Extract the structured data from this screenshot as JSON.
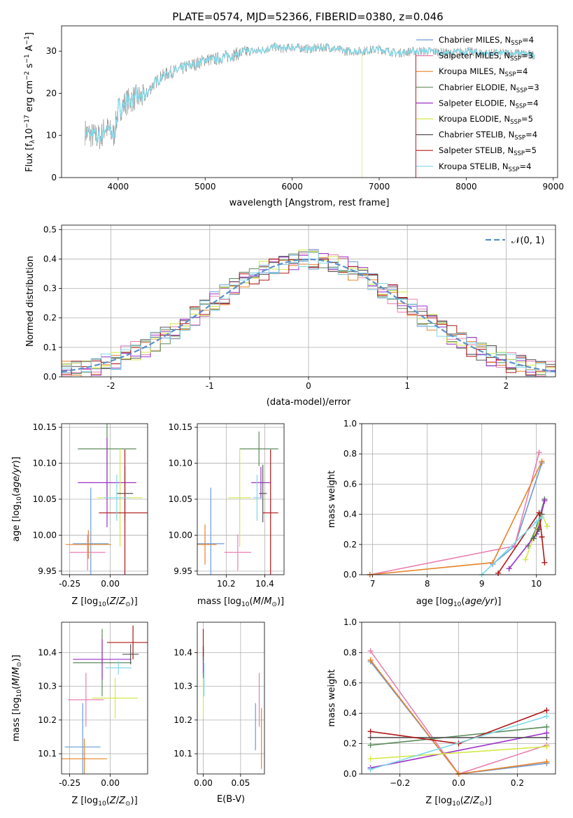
{
  "figure": {
    "title": "PLATE=0574, MJD=52366, FIBERID=0380, z=0.046"
  },
  "colors": {
    "chabrier_miles": "#6a9bd8",
    "salpeter_miles": "#e87fb0",
    "kroupa_miles": "#e8822a",
    "chabrier_elodie": "#5a8a5a",
    "salpeter_elodie": "#9b30c8",
    "kroupa_elodie": "#d4e84a",
    "chabrier_stelib": "#555555",
    "salpeter_stelib": "#b01818",
    "kroupa_stelib": "#7fd8e8",
    "data": "#808080",
    "gaussian": "#5b8fc8",
    "grid": "#b0b0b0"
  },
  "chart_data": [
    {
      "id": "spectrum",
      "type": "line",
      "xlabel": "wavelength [Angstrom, rest frame]",
      "ylabel": "Flux [f_λ10^-17 erg cm^-2 s^-1 A^-1]",
      "xlim": [
        3350,
        9050
      ],
      "ylim": [
        0,
        36
      ],
      "xticks": [
        4000,
        5000,
        6000,
        7000,
        8000,
        9000
      ],
      "yticks": [
        0,
        10,
        20,
        30
      ],
      "grid": false,
      "legend_position": "right",
      "legend": [
        {
          "text": "Chabrier MILES, N",
          "sub": "SSP",
          "tail": "=4",
          "color_key": "chabrier_miles"
        },
        {
          "text": "Salpeter MILES, N",
          "sub": "SSP",
          "tail": "=3",
          "color_key": "salpeter_miles"
        },
        {
          "text": "Kroupa MILES, N",
          "sub": "SSP",
          "tail": "=4",
          "color_key": "kroupa_miles"
        },
        {
          "text": "Chabrier ELODIE, N",
          "sub": "SSP",
          "tail": "=3",
          "color_key": "chabrier_elodie"
        },
        {
          "text": "Salpeter ELODIE, N",
          "sub": "SSP",
          "tail": "=4",
          "color_key": "salpeter_elodie"
        },
        {
          "text": "Kroupa ELODIE, N",
          "sub": "SSP",
          "tail": "=5",
          "color_key": "kroupa_elodie"
        },
        {
          "text": "Chabrier STELIB, N",
          "sub": "SSP",
          "tail": "=4",
          "color_key": "chabrier_stelib"
        },
        {
          "text": "Salpeter STELIB, N",
          "sub": "SSP",
          "tail": "=5",
          "color_key": "salpeter_stelib"
        },
        {
          "text": "Kroupa STELIB, N",
          "sub": "SSP",
          "tail": "=4",
          "color_key": "kroupa_stelib"
        }
      ],
      "continuum": [
        [
          3600,
          11
        ],
        [
          3700,
          10
        ],
        [
          3800,
          9.5
        ],
        [
          3850,
          12
        ],
        [
          3950,
          10
        ],
        [
          4000,
          16
        ],
        [
          4100,
          18
        ],
        [
          4200,
          19
        ],
        [
          4300,
          19
        ],
        [
          4400,
          22
        ],
        [
          4500,
          24
        ],
        [
          4600,
          25
        ],
        [
          4700,
          25.5
        ],
        [
          4800,
          26.5
        ],
        [
          4900,
          27
        ],
        [
          5000,
          28
        ],
        [
          5100,
          28
        ],
        [
          5200,
          28.5
        ],
        [
          5300,
          29
        ],
        [
          5400,
          29.5
        ],
        [
          5500,
          30
        ],
        [
          5600,
          30
        ],
        [
          5700,
          30.5
        ],
        [
          5800,
          31
        ],
        [
          5900,
          30.5
        ],
        [
          6000,
          31
        ],
        [
          6200,
          30.5
        ],
        [
          6400,
          31
        ],
        [
          6600,
          30
        ],
        [
          6800,
          30
        ],
        [
          7000,
          30.5
        ],
        [
          7200,
          29.5
        ],
        [
          7400,
          30
        ],
        [
          7600,
          30
        ],
        [
          7800,
          29.5
        ],
        [
          8000,
          30
        ],
        [
          8200,
          29.5
        ],
        [
          8400,
          29.5
        ],
        [
          8600,
          29.5
        ],
        [
          8800,
          29
        ]
      ],
      "model_end": {
        "kroupa_elodie": 6800,
        "salpeter_stelib": 7420,
        "salpeter_miles": 7420,
        "kroupa_miles": 7420,
        "chabrier_elodie": 7420,
        "salpeter_elodie": 7420
      }
    },
    {
      "id": "residuals",
      "type": "histogram",
      "xlabel": "(data-model)/error",
      "ylabel": "Normed distribution",
      "xlim": [
        -2.5,
        2.5
      ],
      "ylim": [
        0,
        0.515
      ],
      "xticks": [
        -2,
        -1,
        0,
        1,
        2
      ],
      "yticks": [
        0.0,
        0.1,
        0.2,
        0.3,
        0.4,
        0.5
      ],
      "grid": true,
      "legend_position": "top-right",
      "legend": [
        {
          "text": "𝒩(0, 1)",
          "color_key": "gaussian"
        }
      ],
      "bin_width": 0.1
    },
    {
      "id": "age_vs_Z",
      "type": "scatter",
      "xlabel": "Z [log10(Z/Z⊙)]",
      "ylabel": "age  [log10(age/yr)]",
      "xlim": [
        -0.3,
        0.23
      ],
      "ylim": [
        9.945,
        10.155
      ],
      "xticks": [
        -0.25,
        0.0
      ],
      "yticks": [
        9.95,
        10.0,
        10.05,
        10.1,
        10.15
      ],
      "points": [
        {
          "key": "chabrier_miles",
          "x": -0.12,
          "xerr": 0.11,
          "y": 9.988,
          "yerr": 0.078
        },
        {
          "key": "salpeter_miles",
          "x": -0.14,
          "xerr": 0.11,
          "y": 9.976,
          "yerr": 0.025
        },
        {
          "key": "kroupa_miles",
          "x": -0.135,
          "xerr": 0.14,
          "y": 9.987,
          "yerr": 0.02
        },
        {
          "key": "chabrier_elodie",
          "x": -0.02,
          "xerr": 0.18,
          "y": 10.12,
          "yerr": 0.07
        },
        {
          "key": "salpeter_elodie",
          "x": -0.02,
          "xerr": 0.18,
          "y": 10.073,
          "yerr": 0.062
        },
        {
          "key": "kroupa_elodie",
          "x": 0.06,
          "xerr": 0.14,
          "y": 10.052,
          "yerr": 0.068
        },
        {
          "key": "chabrier_stelib",
          "x": 0.09,
          "xerr": 0.05,
          "y": 10.058,
          "yerr": 0.038
        },
        {
          "key": "salpeter_stelib",
          "x": 0.09,
          "xerr": 0.16,
          "y": 10.031,
          "yerr": 0.088
        },
        {
          "key": "kroupa_stelib",
          "x": 0.04,
          "xerr": 0.08,
          "y": 10.052,
          "yerr": 0.032
        }
      ]
    },
    {
      "id": "age_vs_mass",
      "type": "scatter",
      "xlabel": "mass [log10(M/M⊙)]",
      "ylabel": "",
      "xlim": [
        10.05,
        10.5
      ],
      "ylim": [
        9.945,
        10.155
      ],
      "xticks": [
        10.2,
        10.4
      ],
      "yticks": [
        9.95,
        10.0,
        10.05,
        10.1,
        10.15
      ],
      "points": [
        {
          "key": "chabrier_miles",
          "x": 10.12,
          "xerr": 0.07,
          "y": 9.988,
          "yerr": 0.078
        },
        {
          "key": "salpeter_miles",
          "x": 10.26,
          "xerr": 0.07,
          "y": 9.976,
          "yerr": 0.025
        },
        {
          "key": "kroupa_miles",
          "x": 10.09,
          "xerr": 0.06,
          "y": 9.987,
          "yerr": 0.028
        },
        {
          "key": "chabrier_elodie",
          "x": 10.37,
          "xerr": 0.1,
          "y": 10.12,
          "yerr": 0.024
        },
        {
          "key": "salpeter_elodie",
          "x": 10.38,
          "xerr": 0.05,
          "y": 10.073,
          "yerr": 0.022
        },
        {
          "key": "kroupa_elodie",
          "x": 10.27,
          "xerr": 0.06,
          "y": 10.052,
          "yerr": 0.068
        },
        {
          "key": "chabrier_stelib",
          "x": 10.39,
          "xerr": 0.02,
          "y": 10.058,
          "yerr": 0.04
        },
        {
          "key": "salpeter_stelib",
          "x": 10.43,
          "xerr": 0.04,
          "y": 10.031,
          "yerr": 0.088
        },
        {
          "key": "kroupa_stelib",
          "x": 10.36,
          "xerr": 0.02,
          "y": 10.052,
          "yerr": 0.032
        }
      ]
    },
    {
      "id": "weight_vs_age",
      "type": "line",
      "xlabel": "age  [log10(age/yr)]",
      "ylabel": "mass weight",
      "xlim": [
        6.8,
        10.35
      ],
      "ylim": [
        0.0,
        1.0
      ],
      "xticks": [
        7,
        8,
        9,
        10
      ],
      "yticks": [
        0.0,
        0.2,
        0.4,
        0.6,
        0.8,
        1.0
      ],
      "grid": true,
      "series": [
        {
          "key": "chabrier_miles",
          "x": [
            9.2,
            9.6,
            10.1
          ],
          "y": [
            0.07,
            0.19,
            0.74
          ]
        },
        {
          "key": "salpeter_miles",
          "x": [
            6.95,
            9.6,
            10.05
          ],
          "y": [
            0.0,
            0.19,
            0.81
          ]
        },
        {
          "key": "kroupa_miles",
          "x": [
            6.95,
            9.2,
            10.1
          ],
          "y": [
            0.0,
            0.08,
            0.75
          ]
        },
        {
          "key": "chabrier_elodie",
          "x": [
            9.85,
            10.0,
            10.15
          ],
          "y": [
            0.19,
            0.31,
            0.5
          ]
        },
        {
          "key": "salpeter_elodie",
          "x": [
            9.5,
            10.0,
            10.15
          ],
          "y": [
            0.04,
            0.27,
            0.49
          ]
        },
        {
          "key": "kroupa_elodie",
          "x": [
            9.8,
            10.1,
            10.2
          ],
          "y": [
            0.1,
            0.4,
            0.32
          ]
        },
        {
          "key": "chabrier_stelib",
          "x": [
            9.95,
            10.05,
            10.1
          ],
          "y": [
            0.24,
            0.3,
            0.4
          ]
        },
        {
          "key": "salpeter_stelib",
          "x": [
            9.3,
            10.05,
            10.1,
            10.15
          ],
          "y": [
            0.01,
            0.41,
            0.25,
            0.08
          ]
        },
        {
          "key": "kroupa_stelib",
          "x": [
            9.0,
            10.0,
            10.1
          ],
          "y": [
            0.0,
            0.35,
            0.38
          ]
        }
      ]
    },
    {
      "id": "mass_vs_Z",
      "type": "scatter",
      "xlabel": "Z [log10(Z/Z⊙)]",
      "ylabel": "mass [log10(M/M⊙)]",
      "xlim": [
        -0.3,
        0.23
      ],
      "ylim": [
        10.04,
        10.49
      ],
      "xticks": [
        -0.25,
        0.0
      ],
      "yticks": [
        10.1,
        10.2,
        10.3,
        10.4
      ],
      "points": [
        {
          "key": "chabrier_miles",
          "x": -0.17,
          "xerr": 0.11,
          "y": 10.12,
          "yerr": 0.13
        },
        {
          "key": "salpeter_miles",
          "x": -0.15,
          "xerr": 0.11,
          "y": 10.26,
          "yerr": 0.08
        },
        {
          "key": "kroupa_miles",
          "x": -0.16,
          "xerr": 0.14,
          "y": 10.085,
          "yerr": 0.06
        },
        {
          "key": "chabrier_elodie",
          "x": -0.05,
          "xerr": 0.18,
          "y": 10.37,
          "yerr": 0.1
        },
        {
          "key": "salpeter_elodie",
          "x": -0.05,
          "xerr": 0.18,
          "y": 10.38,
          "yerr": 0.06
        },
        {
          "key": "kroupa_elodie",
          "x": 0.03,
          "xerr": 0.14,
          "y": 10.265,
          "yerr": 0.06
        },
        {
          "key": "chabrier_stelib",
          "x": 0.125,
          "xerr": 0.05,
          "y": 10.395,
          "yerr": 0.03
        },
        {
          "key": "salpeter_stelib",
          "x": 0.14,
          "xerr": 0.16,
          "y": 10.43,
          "yerr": 0.05
        },
        {
          "key": "kroupa_stelib",
          "x": 0.05,
          "xerr": 0.08,
          "y": 10.355,
          "yerr": 0.02
        }
      ]
    },
    {
      "id": "mass_vs_ebv",
      "type": "scatter",
      "xlabel": "E(B-V)",
      "ylabel": "",
      "xlim": [
        -0.008,
        0.082
      ],
      "ylim": [
        10.04,
        10.49
      ],
      "xticks": [
        0.0,
        0.05
      ],
      "yticks": [
        10.1,
        10.2,
        10.3,
        10.4
      ],
      "points": [
        {
          "key": "chabrier_miles",
          "x": 0.07,
          "xerr": 0,
          "y": 10.18,
          "yerr": 0.07
        },
        {
          "key": "salpeter_miles",
          "x": 0.075,
          "xerr": 0,
          "y": 10.26,
          "yerr": 0.08
        },
        {
          "key": "kroupa_miles",
          "x": 0.078,
          "xerr": 0,
          "y": 10.145,
          "yerr": 0.09
        },
        {
          "key": "chabrier_elodie",
          "x": 0.0,
          "xerr": 0,
          "y": 10.37,
          "yerr": 0.05
        },
        {
          "key": "salpeter_elodie",
          "x": 0.0,
          "xerr": 0,
          "y": 10.38,
          "yerr": 0.04
        },
        {
          "key": "kroupa_elodie",
          "x": 0.0,
          "xerr": 0,
          "y": 10.265,
          "yerr": 0.06
        },
        {
          "key": "chabrier_stelib",
          "x": 0.0,
          "xerr": 0,
          "y": 10.395,
          "yerr": 0.02
        },
        {
          "key": "salpeter_stelib",
          "x": 0.0,
          "xerr": 0,
          "y": 10.43,
          "yerr": 0.04
        },
        {
          "key": "kroupa_stelib",
          "x": 0.001,
          "xerr": 0,
          "y": 10.32,
          "yerr": 0.05
        }
      ]
    },
    {
      "id": "weight_vs_Z",
      "type": "line",
      "xlabel": "Z [log10(Z/Z⊙)]",
      "ylabel": "mass weight",
      "xlim": [
        -0.33,
        0.33
      ],
      "ylim": [
        0.0,
        1.0
      ],
      "xticks": [
        -0.2,
        0.0,
        0.2
      ],
      "yticks": [
        0.0,
        0.2,
        0.4,
        0.6,
        0.8,
        1.0
      ],
      "grid": true,
      "series": [
        {
          "key": "chabrier_miles",
          "x": [
            -0.3,
            0.0,
            0.3
          ],
          "y": [
            0.74,
            0.0,
            0.07
          ]
        },
        {
          "key": "salpeter_miles",
          "x": [
            -0.3,
            0.0,
            0.3
          ],
          "y": [
            0.81,
            0.0,
            0.19
          ]
        },
        {
          "key": "kroupa_miles",
          "x": [
            -0.3,
            0.0,
            0.3
          ],
          "y": [
            0.75,
            0.0,
            0.08
          ]
        },
        {
          "key": "chabrier_elodie",
          "x": [
            -0.3,
            0.3
          ],
          "y": [
            0.19,
            0.31
          ]
        },
        {
          "key": "salpeter_elodie",
          "x": [
            -0.3,
            0.3
          ],
          "y": [
            0.04,
            0.27
          ]
        },
        {
          "key": "kroupa_elodie",
          "x": [
            -0.3,
            0.3
          ],
          "y": [
            0.1,
            0.18
          ]
        },
        {
          "key": "chabrier_stelib",
          "x": [
            -0.3,
            0.3
          ],
          "y": [
            0.24,
            0.24
          ]
        },
        {
          "key": "salpeter_stelib",
          "x": [
            -0.3,
            0.0,
            0.3
          ],
          "y": [
            0.28,
            0.2,
            0.42
          ]
        },
        {
          "key": "kroupa_stelib",
          "x": [
            -0.3,
            0.3
          ],
          "y": [
            0.03,
            0.38
          ]
        }
      ]
    }
  ]
}
